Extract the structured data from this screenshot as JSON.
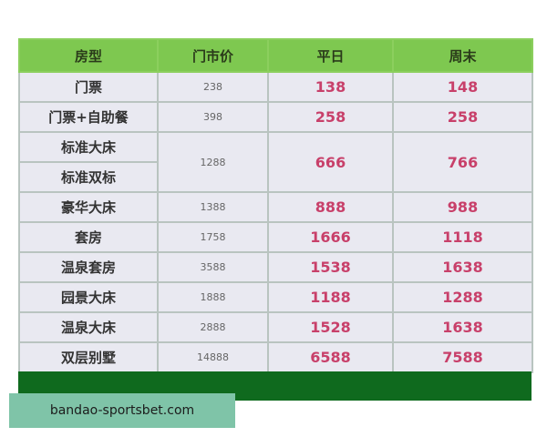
{
  "table": {
    "headers": [
      "房型",
      "门市价",
      "平日",
      "周末"
    ],
    "rows": [
      {
        "name": "门票",
        "rack": "238",
        "weekday": "138",
        "weekend": "148"
      },
      {
        "name": "门票+自助餐",
        "rack": "398",
        "weekday": "258",
        "weekend": "258"
      },
      {
        "name": "标准大床",
        "name2": "标准双标",
        "rack": "1288",
        "weekday": "666",
        "weekend": "766"
      },
      {
        "name": "豪华大床",
        "rack": "1388",
        "weekday": "888",
        "weekend": "988"
      },
      {
        "name": "套房",
        "rack": "1758",
        "weekday": "1666",
        "weekend": "1118"
      },
      {
        "name": "温泉套房",
        "rack": "3588",
        "weekday": "1538",
        "weekend": "1638"
      },
      {
        "name": "园景大床",
        "rack": "1888",
        "weekday": "1188",
        "weekend": "1288"
      },
      {
        "name": "温泉大床",
        "rack": "2888",
        "weekday": "1528",
        "weekend": "1638"
      },
      {
        "name": "双层别墅",
        "rack": "14888",
        "weekday": "6588",
        "weekend": "7588"
      }
    ]
  },
  "colors": {
    "header": "#7ec850",
    "footer": "#0f6a1e",
    "price": "#c8406a",
    "banner": "#7fc4a8"
  },
  "watermark": "bandao-sportsbet.com"
}
